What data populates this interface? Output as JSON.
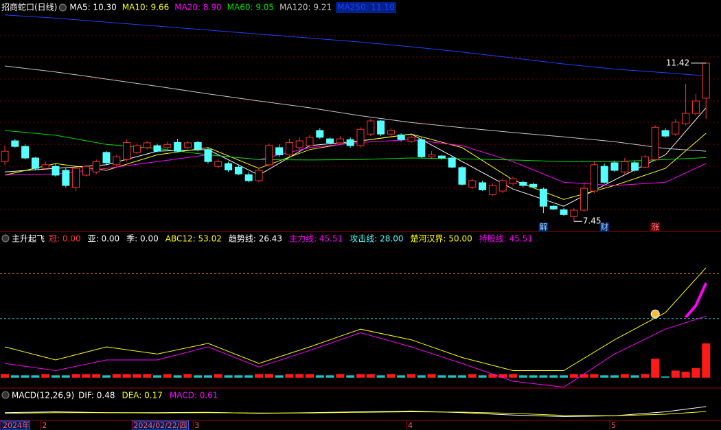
{
  "header": {
    "title": "招商蛇口(日线)"
  },
  "chart_data": [
    {
      "type": "candlestick",
      "open": [
        8.95,
        9.47,
        9.33,
        9.04,
        8.78,
        8.83,
        8.73,
        8.3,
        8.61,
        8.69,
        9.18,
        8.87,
        9.0,
        9.18,
        9.3,
        9.35,
        9.3,
        9.43,
        9.3,
        9.43,
        9.25,
        8.83,
        8.9,
        8.81,
        8.62,
        8.47,
        8.87,
        9.3,
        9.12,
        9.3,
        9.35,
        9.73,
        9.52,
        9.42,
        9.5,
        9.35,
        9.64,
        9.97,
        9.64,
        9.62,
        9.45,
        9.5,
        9.07,
        9.09,
        9.04,
        8.8,
        8.31,
        8.42,
        8.12,
        8.21,
        8.4,
        8.43,
        8.38,
        8.26,
        7.83,
        7.74,
        7.57,
        7.73,
        8.21,
        8.83,
        8.92,
        8.69,
        8.92,
        8.81,
        9.0,
        9.73,
        9.64,
        9.9,
        10.16,
        10.54
      ],
      "high": [
        9.35,
        9.52,
        9.38,
        9.07,
        8.95,
        8.9,
        8.78,
        8.83,
        8.87,
        9.0,
        9.21,
        9.12,
        9.5,
        9.4,
        9.47,
        9.4,
        9.45,
        9.52,
        9.47,
        9.47,
        9.3,
        9.0,
        8.95,
        8.87,
        8.69,
        8.78,
        9.4,
        9.38,
        9.52,
        9.56,
        9.62,
        9.79,
        9.56,
        9.59,
        9.56,
        9.81,
        10.02,
        10.0,
        9.79,
        9.66,
        9.62,
        9.56,
        9.21,
        9.12,
        9.07,
        8.83,
        8.52,
        8.47,
        8.4,
        8.52,
        8.57,
        8.47,
        8.42,
        8.3,
        7.86,
        7.78,
        7.78,
        8.43,
        8.97,
        8.9,
        8.97,
        9.04,
        8.97,
        9.12,
        9.86,
        9.79,
        10.02,
        10.9,
        10.65,
        11.42
      ],
      "low": [
        8.87,
        9.3,
        9.0,
        8.73,
        8.73,
        8.57,
        8.3,
        8.21,
        8.57,
        8.64,
        8.87,
        8.83,
        8.95,
        9.12,
        9.25,
        9.18,
        9.25,
        9.18,
        9.26,
        9.21,
        8.9,
        8.78,
        8.69,
        8.61,
        8.43,
        8.43,
        8.83,
        9.07,
        9.07,
        9.25,
        9.3,
        9.52,
        9.38,
        9.38,
        9.3,
        9.3,
        9.59,
        9.59,
        9.59,
        9.45,
        9.42,
        9.04,
        9.04,
        9.0,
        8.78,
        8.35,
        8.26,
        8.21,
        8.09,
        8.16,
        8.35,
        8.31,
        8.28,
        7.66,
        7.73,
        7.59,
        7.45,
        7.69,
        8.16,
        8.4,
        8.69,
        8.64,
        8.69,
        8.78,
        8.95,
        9.55,
        9.59,
        9.86,
        10.1,
        10.02
      ],
      "close": [
        9.21,
        9.33,
        9.04,
        8.78,
        8.87,
        8.61,
        8.35,
        8.78,
        8.83,
        8.95,
        8.92,
        9.07,
        9.43,
        9.35,
        9.42,
        9.21,
        9.38,
        9.21,
        9.42,
        9.26,
        8.95,
        8.95,
        8.74,
        8.64,
        8.47,
        8.73,
        9.35,
        9.12,
        9.43,
        9.47,
        9.56,
        9.56,
        9.42,
        9.52,
        9.35,
        9.76,
        9.97,
        9.64,
        9.73,
        9.5,
        9.56,
        9.07,
        9.12,
        9.04,
        8.81,
        8.38,
        8.47,
        8.24,
        8.35,
        8.47,
        8.52,
        8.35,
        8.31,
        7.83,
        7.76,
        7.62,
        7.73,
        8.28,
        8.87,
        8.43,
        8.73,
        8.95,
        8.73,
        9.07,
        9.81,
        9.59,
        9.94,
        10.16,
        10.47,
        11.42
      ],
      "up_color": "#ff3232",
      "down_color": "#54ffff",
      "ylim": [
        7.23,
        12.66
      ],
      "series": [
        {
          "name": "MA5: 10.30",
          "color": "#ffffff",
          "x": [
            0,
            5,
            10,
            15,
            20,
            25,
            30,
            35,
            40,
            45,
            50,
            55,
            60,
            65,
            69
          ],
          "values": [
            8.69,
            8.78,
            8.87,
            9.21,
            9.25,
            8.61,
            9.35,
            9.47,
            9.64,
            8.95,
            8.26,
            7.83,
            8.49,
            9.12,
            10.3
          ]
        },
        {
          "name": "MA10: 9.66",
          "color": "#ffff00",
          "x": [
            0,
            5,
            10,
            15,
            20,
            25,
            30,
            35,
            40,
            45,
            50,
            55,
            60,
            65,
            69
          ],
          "values": [
            8.61,
            8.9,
            8.73,
            9.12,
            9.3,
            8.78,
            9.25,
            9.47,
            9.64,
            9.3,
            8.49,
            8.0,
            8.35,
            8.78,
            9.66
          ]
        },
        {
          "name": "MA20: 8.90",
          "color": "#ff00ff",
          "x": [
            0,
            5,
            10,
            15,
            20,
            25,
            30,
            35,
            40,
            45,
            50,
            55,
            60,
            65,
            69
          ],
          "values": [
            8.61,
            8.64,
            8.78,
            8.95,
            9.12,
            9.0,
            9.3,
            9.43,
            9.5,
            9.35,
            8.95,
            8.43,
            8.35,
            8.43,
            8.9
          ]
        },
        {
          "name": "MA60: 9.05",
          "color": "#00e000",
          "x": [
            0,
            5,
            10,
            15,
            20,
            25,
            30,
            35,
            40,
            45,
            50,
            55,
            60,
            65,
            69
          ],
          "values": [
            9.73,
            9.61,
            9.38,
            9.28,
            9.12,
            9.0,
            8.99,
            9.0,
            9.04,
            9.02,
            8.99,
            8.95,
            8.95,
            9.0,
            9.05
          ]
        },
        {
          "name": "MA120: 9.21",
          "color": "#c8c8c8",
          "x": [
            0,
            5,
            10,
            15,
            20,
            25,
            30,
            35,
            40,
            45,
            50,
            55,
            60,
            65,
            69
          ],
          "values": [
            11.35,
            11.2,
            11.02,
            10.84,
            10.65,
            10.47,
            10.3,
            10.1,
            9.93,
            9.8,
            9.68,
            9.57,
            9.45,
            9.28,
            9.21
          ]
        },
        {
          "name": "MA250: 11.10",
          "color": "#2040ff",
          "x": [
            0,
            5,
            10,
            15,
            20,
            25,
            30,
            35,
            40,
            45,
            50,
            55,
            60,
            65,
            69
          ],
          "values": [
            12.63,
            12.55,
            12.45,
            12.35,
            12.25,
            12.15,
            12.05,
            11.95,
            11.83,
            11.7,
            11.55,
            11.4,
            11.27,
            11.18,
            11.1
          ]
        }
      ],
      "events": [
        {
          "index": 53,
          "label": "解"
        },
        {
          "index": 59,
          "label": "财"
        },
        {
          "index": 64,
          "label": "涨"
        }
      ],
      "x_labels": [
        {
          "index": 0,
          "label": "2024年"
        },
        {
          "index": 4,
          "label": "2"
        },
        {
          "index": 13,
          "label": "2024/02/22/四"
        },
        {
          "index": 19,
          "label": "3"
        },
        {
          "index": 40,
          "label": "4"
        },
        {
          "index": 60,
          "label": "5"
        }
      ]
    },
    {
      "type": "indicator",
      "title": "主升起飞",
      "legend": [
        {
          "text": "冠: 0.00",
          "color": "#ff3232"
        },
        {
          "text": "亚: 0.00",
          "color": "#ffffff"
        },
        {
          "text": "季: 0.00",
          "color": "#ffffff"
        },
        {
          "text": "ABC12: 53.02",
          "color": "#ffff00"
        },
        {
          "text": "趋势线: 26.43",
          "color": "#ffffff"
        },
        {
          "text": "主力线: 45.51",
          "color": "#ff00ff"
        },
        {
          "text": "攻击线: 28.00",
          "color": "#54ffff"
        },
        {
          "text": "楚河汉界: 50.00",
          "color": "#ffff00"
        },
        {
          "text": "持股线: 45.51",
          "color": "#ff00ff"
        }
      ],
      "ylim": [
        -10,
        119
      ],
      "ref_lines": [
        {
          "value": 88,
          "color": "#e07040"
        },
        {
          "value": 50,
          "color": "#20c0c0"
        }
      ],
      "series": [
        {
          "color": "#ffff00",
          "width": 1,
          "x": [
            0,
            5,
            10,
            15,
            20,
            25,
            30,
            35,
            40,
            45,
            50,
            55,
            60,
            65,
            69
          ],
          "values": [
            26,
            15,
            26,
            20,
            29,
            12,
            26,
            41,
            32,
            17,
            6,
            6,
            32,
            55,
            93
          ]
        },
        {
          "color": "#ff00ff",
          "width": 1,
          "x": [
            0,
            5,
            10,
            15,
            20,
            25,
            30,
            35,
            40,
            45,
            50,
            55,
            60,
            65,
            69
          ],
          "values": [
            12,
            6,
            15,
            15,
            26,
            9,
            23,
            38,
            26,
            12,
            -3,
            -8,
            20,
            41,
            52
          ]
        },
        {
          "color": "#ff00ff",
          "width": 4,
          "x": [
            67,
            68,
            69
          ],
          "values": [
            51,
            61,
            80
          ]
        }
      ],
      "bars": [
        3,
        2,
        2,
        2,
        3,
        2,
        2,
        3,
        3,
        3,
        2,
        3,
        3,
        3,
        3,
        2,
        3,
        2,
        3,
        2,
        2,
        3,
        2,
        2,
        2,
        3,
        3,
        2,
        3,
        3,
        3,
        2,
        2,
        3,
        2,
        3,
        3,
        2,
        3,
        2,
        3,
        2,
        3,
        2,
        2,
        2,
        3,
        2,
        3,
        3,
        3,
        2,
        2,
        2,
        2,
        2,
        3,
        3,
        3,
        2,
        2,
        3,
        2,
        3,
        16,
        1,
        6,
        5,
        8,
        29
      ],
      "marker_index": 64
    },
    {
      "type": "macd",
      "title": "MACD(12,26,9)",
      "legend": [
        {
          "text": "DIF: 0.48",
          "color": "#ffffff"
        },
        {
          "text": "DEA: 0.17",
          "color": "#ffff00"
        },
        {
          "text": "MACD: 0.61",
          "color": "#ff00ff"
        }
      ],
      "ylim": [
        -0.39,
        1.43
      ],
      "series": [
        {
          "color": "#ffffff",
          "x": [
            0,
            5,
            10,
            15,
            20,
            25,
            30,
            35,
            40,
            45,
            50,
            55,
            60,
            65,
            69
          ],
          "values": [
            0.1,
            0.15,
            0.1,
            0.1,
            0.12,
            0.05,
            0.1,
            0.15,
            0.2,
            0.1,
            -0.05,
            -0.15,
            -0.1,
            0.15,
            0.48
          ]
        },
        {
          "color": "#ffff00",
          "x": [
            0,
            5,
            10,
            15,
            20,
            25,
            30,
            35,
            40,
            45,
            50,
            55,
            60,
            65,
            69
          ],
          "values": [
            0.05,
            0.1,
            0.1,
            0.08,
            0.1,
            0.08,
            0.08,
            0.12,
            0.15,
            0.13,
            0.05,
            -0.08,
            -0.1,
            0.0,
            0.17
          ]
        }
      ]
    }
  ]
}
